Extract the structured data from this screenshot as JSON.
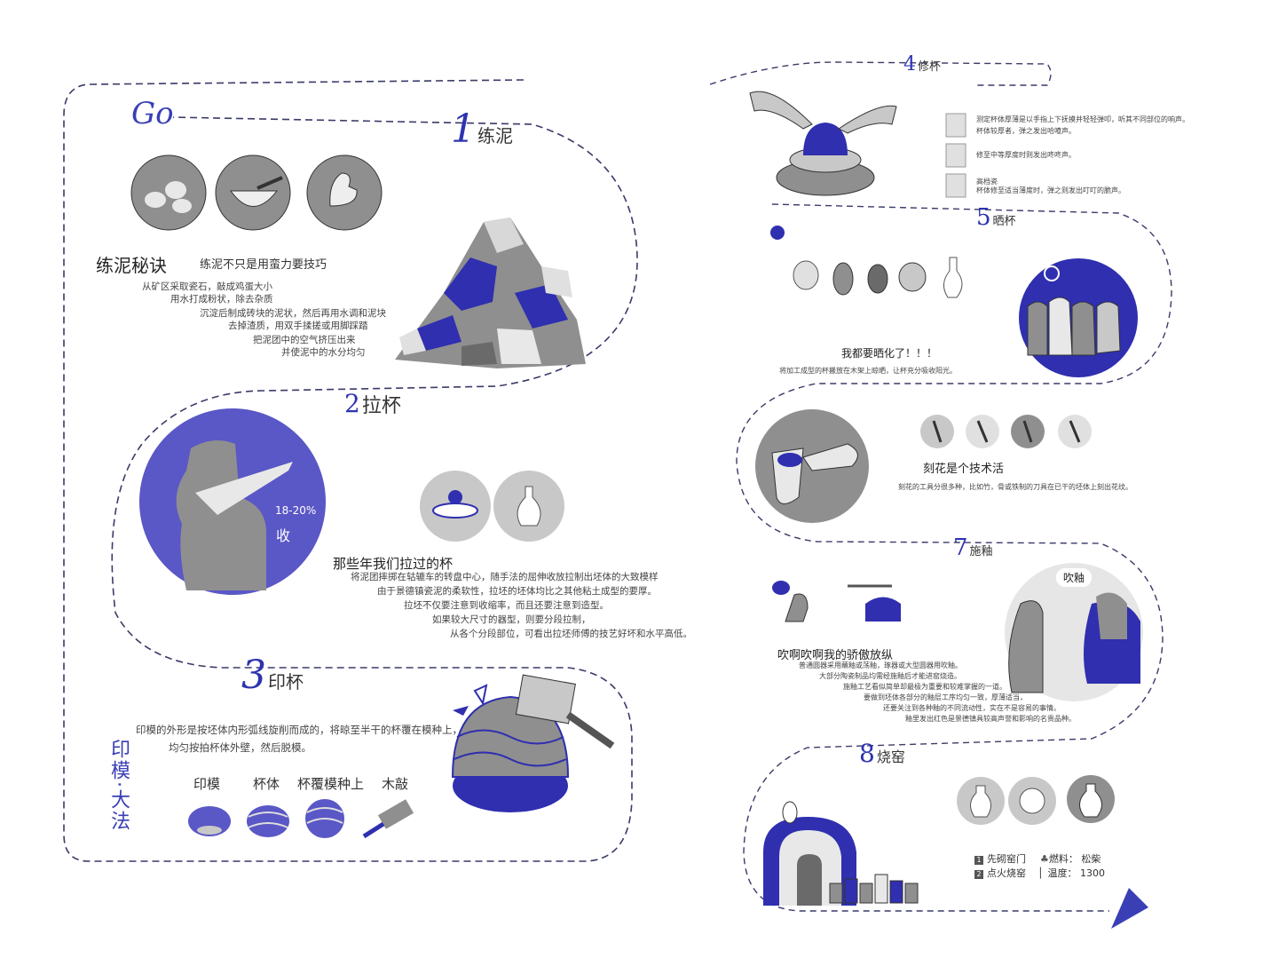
{
  "go_label": "Go",
  "section1": {
    "num": "1",
    "title": "练泥",
    "heading": "练泥秘诀",
    "subheading": "练泥不只是用蛮力要技巧",
    "lines": [
      "从矿区采取瓷石，敲成鸡蛋大小",
      "用水打成粉状，除去杂质",
      "沉淀后制成砖块的泥状，然后再用水调和泥块",
      "去掉渣质，用双手揉搓或用脚踩踏",
      "把泥团中的空气挤压出来",
      "并使泥中的水分均匀"
    ]
  },
  "section2": {
    "num": "2",
    "title": "拉杯",
    "shrink_pct": "18-20%",
    "shrink_label": "收",
    "heading": "那些年我们拉过的杯",
    "lines": [
      "将泥团摔掷在轱辘车的转盘中心，随手法的屈伸收放拉制出坯体的大致模样",
      "由于景德镇瓷泥的柔软性，拉坯的坯体均比之其他粘土成型的要厚。",
      "拉坯不仅要注意到收缩率，而且还要注意到造型。",
      "如果较大尺寸的器型，则要分段拉制，",
      "从各个分段部位，可看出拉坯师傅的技艺好坏和水平高低。"
    ]
  },
  "section3": {
    "num": "3",
    "title": "印杯",
    "lines": [
      "印模的外形是按坯体内形弧线旋削而成的，将晾至半干的杯覆在模种上，",
      "均匀按拍杯体外壁，然后脱模。"
    ],
    "vertical_label": "印模·大法",
    "items": [
      "印模",
      "杯体",
      "杯覆模种上",
      "木敲"
    ]
  },
  "section4": {
    "num": "4",
    "title": "修杯",
    "notes": [
      {
        "lines": [
          "测定杯体厚薄是以手指上下抚摸并轻轻弹叩，听其不同部位的响声。",
          "杯体较厚者，弹之发出哈喳声。"
        ]
      },
      {
        "lines": [
          "修至中等厚度时则发出咚咚声。"
        ]
      },
      {
        "lines": [
          "高档瓷",
          "杯体修至适当薄度时，弹之则发出叮叮的脆声。"
        ]
      }
    ]
  },
  "section5": {
    "num": "5",
    "title": "晒杯",
    "heading": "我都要晒化了！！！",
    "line": "将加工成型的杯搬放在木架上晾晒，让杯充分吸收阳光。"
  },
  "section6": {
    "heading": "刻花是个技术活",
    "line": "刻花的工具分很多种，比如竹，骨或铁制的刀具在已干的坯体上刻出花纹。"
  },
  "section7": {
    "num": "7",
    "title": "施釉",
    "bubble": "吹釉",
    "heading": "吹啊吹啊我的骄傲放纵",
    "lines": [
      "普通圆器采用蘸釉或荡釉，琢器或大型圆器用吹釉。",
      "大部分陶瓷制品均需经施釉后才能进窑烧造。",
      "施釉工艺看似简单却最极为重要和较难掌握的一道。",
      "要做到坯体各部分的釉层工序均匀一致，厚薄适当，",
      "还要关注到各种釉的不同流动性，实在不是容易的事情。",
      "釉里发出红色是景德镇具较高声誉和影响的名贵品种。"
    ]
  },
  "section8": {
    "num": "8",
    "title": "烧窑",
    "steps": [
      {
        "n": "1",
        "text": "先砌窑门"
      },
      {
        "n": "2",
        "text": "点火烧窑"
      }
    ],
    "fuel_label": "燃料：",
    "fuel_value": "松柴",
    "temp_label": "温度：",
    "temp_value": "1300"
  },
  "colors": {
    "accent": "#3a3fb5",
    "indigo": "#5a57c6",
    "gray": "#8c8c8c",
    "light": "#c8c8c8"
  }
}
